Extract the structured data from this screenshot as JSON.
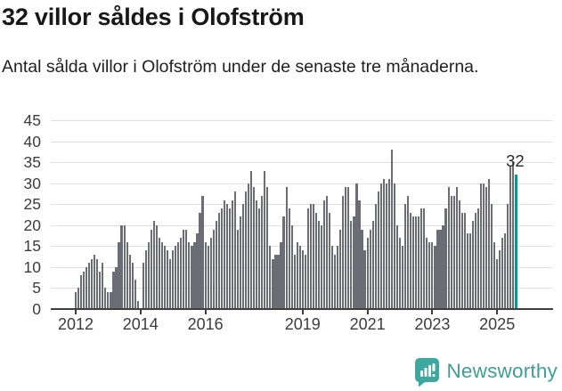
{
  "title": "32 villor såldes i Olofström",
  "subtitle": "Antal sålda villor i Olofström under de senaste tre månaderna.",
  "chart_data": {
    "type": "bar",
    "title": "32 villor såldes i Olofström",
    "subtitle": "Antal sålda villor i Olofström under de senaste tre månaderna.",
    "unit": "sålda villor (rullande 3 månader)",
    "x_start_year": 2012,
    "x_start_month": 1,
    "values": [
      4,
      5,
      8,
      9,
      10,
      11,
      12,
      13,
      12,
      9,
      11,
      5,
      4,
      4,
      9,
      10,
      16,
      20,
      20,
      16,
      13,
      11,
      7,
      2,
      0,
      11,
      14,
      16,
      19,
      21,
      20,
      17,
      16,
      15,
      14,
      12,
      14,
      15,
      16,
      17,
      19,
      19,
      16,
      15,
      16,
      18,
      23,
      27,
      16,
      15,
      17,
      19,
      21,
      23,
      24,
      26,
      25,
      24,
      26,
      28,
      19,
      22,
      25,
      28,
      30,
      33,
      29,
      26,
      24,
      27,
      33,
      29,
      15,
      12,
      13,
      13,
      16,
      22,
      29,
      24,
      20,
      13,
      16,
      15,
      14,
      13,
      24,
      25,
      25,
      23,
      21,
      20,
      26,
      27,
      23,
      15,
      13,
      15,
      19,
      27,
      29,
      29,
      21,
      22,
      30,
      26,
      19,
      14,
      17,
      19,
      21,
      25,
      28,
      30,
      31,
      30,
      31,
      38,
      30,
      20,
      17,
      15,
      25,
      27,
      23,
      22,
      22,
      22,
      24,
      24,
      17,
      16,
      16,
      15,
      19,
      19,
      20,
      24,
      29,
      27,
      27,
      29,
      26,
      23,
      23,
      18,
      18,
      21,
      23,
      24,
      30,
      30,
      29,
      31,
      25,
      16,
      12,
      14,
      17,
      18,
      25,
      34,
      35,
      32
    ],
    "last_value": 32,
    "annotation_label": "32",
    "highlight_last": true,
    "bar_color": "#6c6c75",
    "highlight_color": "#009c95",
    "grid": true,
    "legend_position": "none",
    "x_tick_years": [
      2012,
      2014,
      2016,
      2019,
      2021,
      2023,
      2025
    ],
    "y_ticks": [
      0,
      5,
      10,
      15,
      20,
      25,
      30,
      35,
      40,
      45
    ],
    "ylim": [
      0,
      45
    ]
  },
  "branding": {
    "logo_text": "Newsworthy",
    "logo_color": "#3ea7a0"
  }
}
